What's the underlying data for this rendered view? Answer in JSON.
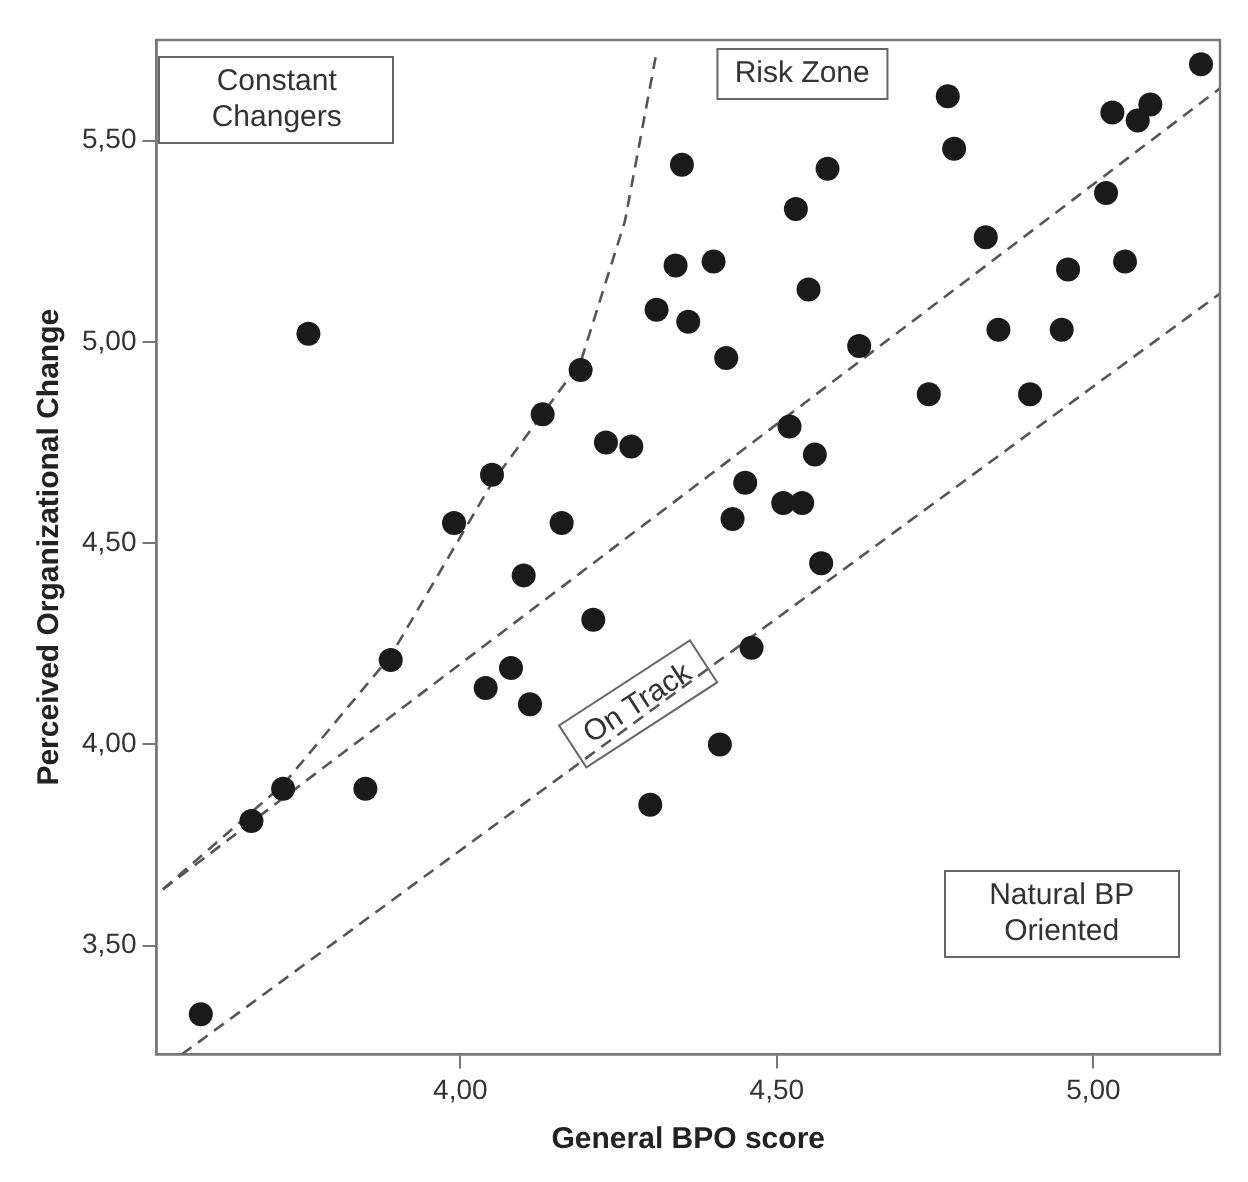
{
  "chart_data": {
    "type": "scatter",
    "xlabel": "General BPO score",
    "ylabel": "Perceived Organizational Change",
    "annotations": [
      "Constant Changers",
      "Risk Zone",
      "On Track",
      "Natural BP Oriented"
    ],
    "xlim": [
      3.52,
      5.2
    ],
    "ylim": [
      3.23,
      5.75
    ],
    "xticks": [
      {
        "value": 4,
        "label": "4,00"
      },
      {
        "value": 4.5,
        "label": "4,50"
      },
      {
        "value": 5,
        "label": "5,00"
      }
    ],
    "yticks": [
      {
        "value": 3.5,
        "label": "3,50"
      },
      {
        "value": 4,
        "label": "4,00"
      },
      {
        "value": 4.5,
        "label": "4,50"
      },
      {
        "value": 5,
        "label": "5,00"
      },
      {
        "value": 5.5,
        "label": "5,50"
      }
    ],
    "grid": false,
    "legend": false,
    "marker": "circle",
    "series": [
      {
        "color": "#1a1a1a",
        "x": [
          3.76,
          4.35,
          4.34,
          4.31,
          4.36,
          4.19,
          4.13,
          4.23,
          4.27,
          4.05,
          3.99,
          4.16,
          5.17,
          4.77,
          5.03,
          5.09,
          5.07,
          4.78,
          4.58,
          4.53,
          5.02,
          4.83,
          4.4,
          4.96,
          5.05,
          4.55,
          4.42,
          4.63,
          4.85,
          4.95,
          4.74,
          4.9,
          4.52,
          4.56,
          4.45,
          4.51,
          4.54,
          4.43,
          4.57,
          4.1,
          4.21,
          3.89,
          4.08,
          4.04,
          4.11,
          3.72,
          3.85,
          3.67,
          4.3,
          3.59,
          4.46,
          4.41
        ],
        "values": [
          5.02,
          5.44,
          5.19,
          5.08,
          5.05,
          4.93,
          4.82,
          4.75,
          4.74,
          4.67,
          4.55,
          4.55,
          5.69,
          5.61,
          5.57,
          5.59,
          5.55,
          5.48,
          5.43,
          5.33,
          5.37,
          5.26,
          5.2,
          5.18,
          5.2,
          5.13,
          4.96,
          4.99,
          5.03,
          5.03,
          4.87,
          4.87,
          4.79,
          4.72,
          4.65,
          4.6,
          4.6,
          4.56,
          4.45,
          4.42,
          4.31,
          4.21,
          4.19,
          4.14,
          4.1,
          3.89,
          3.89,
          3.81,
          3.85,
          3.33,
          4.24,
          4.0
        ]
      },
      {
        "type": "line",
        "color": "#555555",
        "line_style": "dashed",
        "marker": "none",
        "x": [
          3.53,
          3.72,
          3.89,
          4.05,
          4.19,
          4.26,
          4.31
        ],
        "values": [
          3.64,
          3.9,
          4.22,
          4.65,
          4.95,
          5.3,
          5.72
        ]
      },
      {
        "type": "line",
        "color": "#555555",
        "line_style": "dashed",
        "marker": "none",
        "x": [
          3.53,
          5.2
        ],
        "values": [
          3.64,
          5.63
        ]
      },
      {
        "type": "line",
        "color": "#555555",
        "line_style": "dashed",
        "marker": "none",
        "x": [
          3.56,
          5.2
        ],
        "values": [
          3.23,
          5.12
        ]
      }
    ]
  }
}
